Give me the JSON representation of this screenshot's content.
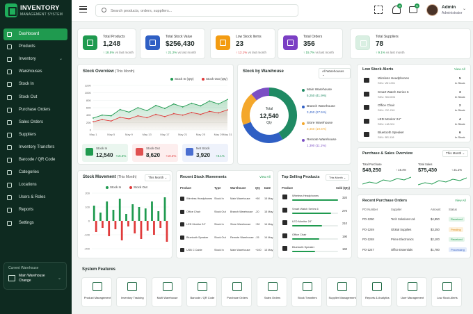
{
  "app": {
    "title": "INVENTORY",
    "subtitle": "MANAGEMENT SYSTEM"
  },
  "nav": [
    {
      "label": "Dashboard",
      "active": true,
      "chev": false
    },
    {
      "label": "Products",
      "chev": false
    },
    {
      "label": "Inventory",
      "chev": true
    },
    {
      "label": "Warehouses",
      "chev": false
    },
    {
      "label": "Stock In",
      "chev": false
    },
    {
      "label": "Stock Out",
      "chev": false
    },
    {
      "label": "Purchase Orders",
      "chev": false
    },
    {
      "label": "Sales Orders",
      "chev": false
    },
    {
      "label": "Suppliers",
      "chev": false
    },
    {
      "label": "Inventory Transfers",
      "chev": false
    },
    {
      "label": "Barcode / QR Code",
      "chev": false
    },
    {
      "label": "Categories",
      "chev": false
    },
    {
      "label": "Locations",
      "chev": false
    },
    {
      "label": "Users & Roles",
      "chev": false
    },
    {
      "label": "Reports",
      "chev": false
    },
    {
      "label": "Settings",
      "chev": false
    }
  ],
  "warehouse": {
    "caption": "Current Warehouse",
    "name": "Main Warehouse Change"
  },
  "search": {
    "placeholder": "Search products, orders, suppliers..."
  },
  "header": {
    "bell_count": "3",
    "mail_count": "5",
    "user_name": "Admin",
    "user_role": "Administrator"
  },
  "kpis": [
    {
      "title": "Total Products",
      "value": "1,248",
      "change": "↑ 18.5%",
      "note": "vs last month",
      "dir": "up",
      "color": "#1f9a4f"
    },
    {
      "title": "Total Stock Value",
      "value": "$256,430",
      "change": "↑ 21.2%",
      "note": "vs last month",
      "dir": "up",
      "color": "#2f5fc4"
    },
    {
      "title": "Low Stock Items",
      "value": "23",
      "change": "↑ 12.1%",
      "note": "vs last month",
      "dir": "dn",
      "color": "#f39c12"
    },
    {
      "title": "Total Orders",
      "value": "356",
      "change": "↑ 15.7%",
      "note": "vs last month",
      "dir": "up",
      "color": "#7b3fc4"
    },
    {
      "title": "Total Suppliers",
      "value": "78",
      "change": "↑ 9.1%",
      "note": "vs last month",
      "dir": "up",
      "color": "#d9efe2"
    }
  ],
  "stock_overview": {
    "title": "Stock Overview",
    "period": "(This Month)",
    "legend_in": "Stock In (Qty)",
    "legend_out": "Stock Out (Qty)",
    "mini": [
      {
        "title": "Stock In",
        "value": "12,540",
        "change": "+15.3%",
        "dir": "up",
        "bg": "#eaf6ef",
        "ic": "#1f9a4f"
      },
      {
        "title": "Stock Out",
        "value": "8,620",
        "change": "+10.2%",
        "dir": "dn",
        "bg": "#fdeeee",
        "ic": "#e05050"
      },
      {
        "title": "Net Stock",
        "value": "3,920",
        "change": "+8.1%",
        "dir": "up",
        "bg": "#eef2fb",
        "ic": "#4a6ed0"
      }
    ]
  },
  "stock_by_wh": {
    "title": "Stock by Warehouse",
    "select": "All Warehouses",
    "total_label": "Total",
    "total_value": "12,540",
    "total_unit": "Qty",
    "items": [
      {
        "name": "Main Warehouse",
        "detail": "5,250 (41.9%)",
        "color": "#1f8a63",
        "value": 41.9
      },
      {
        "name": "Branch Warehouse",
        "detail": "3,450 (27.5%)",
        "color": "#2f5fc4",
        "value": 27.5
      },
      {
        "name": "Store Warehouse",
        "detail": "2,450 (19.5%)",
        "color": "#f4a72b",
        "value": 19.5
      },
      {
        "name": "Remote Warehouse",
        "detail": "1,390 (11.1%)",
        "color": "#7b4fc4",
        "value": 11.1
      }
    ]
  },
  "low_stock": {
    "title": "Low Stock Alerts",
    "view_all": "View All",
    "items": [
      {
        "name": "Wireless Headphones",
        "sku": "SKU: WH-001",
        "qty": "5",
        "unit": "In Stock"
      },
      {
        "name": "Smart Watch Series 6",
        "sku": "SKU: SW-006",
        "qty": "3",
        "unit": "In Stock"
      },
      {
        "name": "Office Chair",
        "sku": "SKU: OC-210",
        "qty": "2",
        "unit": "In Stock"
      },
      {
        "name": "LED Monitor 24\"",
        "sku": "SKU: LM-024",
        "qty": "4",
        "unit": "In Stock"
      },
      {
        "name": "Bluetooth Speaker",
        "sku": "SKU: BS-118",
        "qty": "6",
        "unit": "In Stock"
      }
    ]
  },
  "stock_movement": {
    "title": "Stock Movement",
    "period": "(This Month)",
    "select": "This Month",
    "legend_in": "Stock In",
    "legend_out": "Stock Out"
  },
  "recent_movements": {
    "title": "Recent Stock Movements",
    "view_all": "View All",
    "headers": [
      "Product",
      "Type",
      "Warehouse",
      "Qty",
      "Date"
    ],
    "rows": [
      {
        "product": "Wireless Headphones",
        "type": "Stock In",
        "warehouse": "Main Warehouse",
        "qty": "+50",
        "date": "15 May"
      },
      {
        "product": "Office Chair",
        "type": "Stock Out",
        "warehouse": "Branch Warehouse",
        "qty": "-20",
        "date": "15 May"
      },
      {
        "product": "LED Monitor 24\"",
        "type": "Stock In",
        "warehouse": "Store Warehouse",
        "qty": "+30",
        "date": "14 May"
      },
      {
        "product": "Bluetooth Speaker",
        "type": "Stock Out",
        "warehouse": "Remote Warehouse",
        "qty": "-15",
        "date": "14 May"
      },
      {
        "product": "USB C Cable",
        "type": "Stock In",
        "warehouse": "Main Warehouse",
        "qty": "+100",
        "date": "13 May"
      }
    ]
  },
  "top_selling": {
    "title": "Top Selling Products",
    "select": "This Month",
    "h_product": "Product",
    "h_sold": "Sold (Qty)",
    "items": [
      {
        "name": "Wireless Headphones",
        "sold": "320",
        "value": 320
      },
      {
        "name": "Smart Watch Series 6",
        "sold": "270",
        "value": 270
      },
      {
        "name": "LED Monitor 24\"",
        "sold": "210",
        "value": 210
      },
      {
        "name": "Office Chair",
        "sold": "190",
        "value": 190
      },
      {
        "name": "Bluetooth Speaker",
        "sold": "160",
        "value": 160
      }
    ]
  },
  "purchase_sales": {
    "title": "Purchase & Sales Overview",
    "select": "This Month",
    "purchase": {
      "label": "Total Purchase",
      "value": "$48,250",
      "change": "↑ 16.4%"
    },
    "sales": {
      "label": "Total Sales",
      "value": "$75,430",
      "change": "↑ 21.1%"
    }
  },
  "recent_po": {
    "title": "Recent Purchase Orders",
    "view_all": "View All",
    "headers": [
      "PO Number",
      "Supplier",
      "Amount",
      "Status"
    ],
    "rows": [
      {
        "po": "PO-1250",
        "supplier": "Tech Solutions Ltd.",
        "amount": "$4,850",
        "status": "Received",
        "kind": "ok"
      },
      {
        "po": "PO-1249",
        "supplier": "Global Supplies",
        "amount": "$3,250",
        "status": "Pending",
        "kind": "pend"
      },
      {
        "po": "PO-1248",
        "supplier": "Prime Electronics",
        "amount": "$2,100",
        "status": "Received",
        "kind": "ok"
      },
      {
        "po": "PO-1247",
        "supplier": "Office Essentials",
        "amount": "$1,780",
        "status": "Processing",
        "kind": "proc"
      }
    ]
  },
  "features": {
    "title": "System Features",
    "items": [
      "Product Management",
      "Inventory Tracking",
      "Multi Warehouse",
      "Barcode / QR Code",
      "Purchase Orders",
      "Sales Orders",
      "Stock Transfers",
      "Supplier Management",
      "Reports & Analytics",
      "User Management",
      "Low Stock Alerts"
    ]
  },
  "chart_data": [
    {
      "type": "area",
      "title": "Stock Overview",
      "x": [
        "May 1",
        "May 3",
        "May 5",
        "May 7",
        "May 9",
        "May 11",
        "May 13",
        "May 15",
        "May 17",
        "May 19",
        "May 21",
        "May 23",
        "May 25",
        "May 27",
        "May 29",
        "May 31"
      ],
      "ylim": [
        0,
        120
      ],
      "yticks": [
        "0",
        "20K",
        "40K",
        "60K",
        "80K",
        "100K",
        "120K"
      ],
      "series": [
        {
          "name": "Stock In (Qty)",
          "color": "#1f9a4f",
          "values": [
            32,
            40,
            38,
            55,
            48,
            60,
            52,
            66,
            58,
            70,
            62,
            72,
            65,
            78,
            70,
            82
          ]
        },
        {
          "name": "Stock Out (Qty)",
          "color": "#e03a3a",
          "values": [
            22,
            28,
            24,
            34,
            30,
            38,
            33,
            42,
            36,
            44,
            40,
            47,
            42,
            50,
            46,
            54
          ]
        }
      ]
    },
    {
      "type": "pie",
      "title": "Stock by Warehouse",
      "categories": [
        "Main Warehouse",
        "Branch Warehouse",
        "Store Warehouse",
        "Remote Warehouse"
      ],
      "values": [
        41.9,
        27.5,
        19.5,
        11.1
      ]
    },
    {
      "type": "bar",
      "title": "Stock Movement",
      "ylim": [
        -200,
        200
      ],
      "yticks": [
        "200",
        "100",
        "0",
        "-100",
        "-200"
      ],
      "series": [
        {
          "name": "Stock In",
          "color": "#1f9a4f",
          "values": [
            110,
            60,
            140,
            80,
            160,
            50,
            120,
            100,
            90,
            140,
            70,
            170
          ]
        },
        {
          "name": "Stock Out",
          "color": "#e03a3a",
          "values": [
            -80,
            -50,
            -110,
            -60,
            -140,
            -40,
            -90,
            -130,
            -70,
            -100,
            -50,
            -150
          ]
        }
      ]
    }
  ]
}
